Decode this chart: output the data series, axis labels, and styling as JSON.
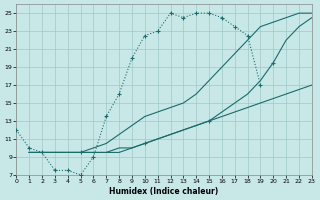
{
  "xlabel": "Humidex (Indice chaleur)",
  "bg_color": "#c8e8e8",
  "grid_color": "#a0c8c8",
  "line_color": "#1a6b6b",
  "xlim": [
    0,
    23
  ],
  "ylim": [
    7,
    26
  ],
  "xtick_vals": [
    0,
    1,
    2,
    3,
    4,
    5,
    6,
    7,
    8,
    9,
    10,
    11,
    12,
    13,
    14,
    15,
    16,
    17,
    18,
    19,
    20,
    21,
    22,
    23
  ],
  "ytick_vals": [
    7,
    9,
    11,
    13,
    15,
    17,
    19,
    21,
    23,
    25
  ],
  "curve1_x": [
    0,
    1,
    2,
    3,
    4,
    5,
    6,
    7,
    8,
    9,
    10,
    11,
    12,
    13,
    14,
    15,
    16,
    17,
    18,
    19
  ],
  "curve1_y": [
    12,
    10,
    9.5,
    7.5,
    7.5,
    7.0,
    9.0,
    13.5,
    16.0,
    20.0,
    22.5,
    23.0,
    25.0,
    24.5,
    25.0,
    25.0,
    24.5,
    23.5,
    22.5,
    17.0
  ],
  "curve2_x": [
    1,
    2,
    3,
    4,
    5,
    6,
    7,
    8,
    9,
    10,
    11,
    12,
    13,
    14,
    15,
    16,
    17,
    18,
    19,
    20,
    21,
    22,
    23
  ],
  "curve2_y": [
    9.5,
    9.5,
    9.5,
    9.5,
    9.5,
    9.5,
    9.5,
    9.5,
    10.0,
    10.5,
    11.0,
    11.5,
    12.0,
    12.5,
    13.0,
    13.5,
    14.0,
    14.5,
    15.0,
    15.5,
    16.0,
    16.5,
    17.0
  ],
  "curve3_x": [
    1,
    2,
    3,
    4,
    5,
    6,
    7,
    8,
    9,
    10,
    11,
    12,
    13,
    14,
    15,
    16,
    17,
    18,
    19,
    20,
    21,
    22,
    23
  ],
  "curve3_y": [
    9.5,
    9.5,
    9.5,
    9.5,
    9.5,
    10.0,
    10.5,
    11.5,
    12.5,
    13.5,
    14.0,
    14.5,
    15.0,
    16.0,
    17.5,
    19.0,
    20.5,
    22.0,
    23.5,
    24.0,
    24.5,
    25.0,
    25.0
  ],
  "curve4_x": [
    1,
    2,
    3,
    4,
    5,
    6,
    7,
    8,
    9,
    10,
    11,
    12,
    13,
    14,
    15,
    16,
    17,
    18,
    19,
    20,
    21,
    22,
    23
  ],
  "curve4_y": [
    9.5,
    9.5,
    9.5,
    9.5,
    9.5,
    9.5,
    9.5,
    10.0,
    10.0,
    10.5,
    11.0,
    11.5,
    12.0,
    12.5,
    13.0,
    14.0,
    15.0,
    16.0,
    17.5,
    19.5,
    22.0,
    23.5,
    24.5
  ]
}
